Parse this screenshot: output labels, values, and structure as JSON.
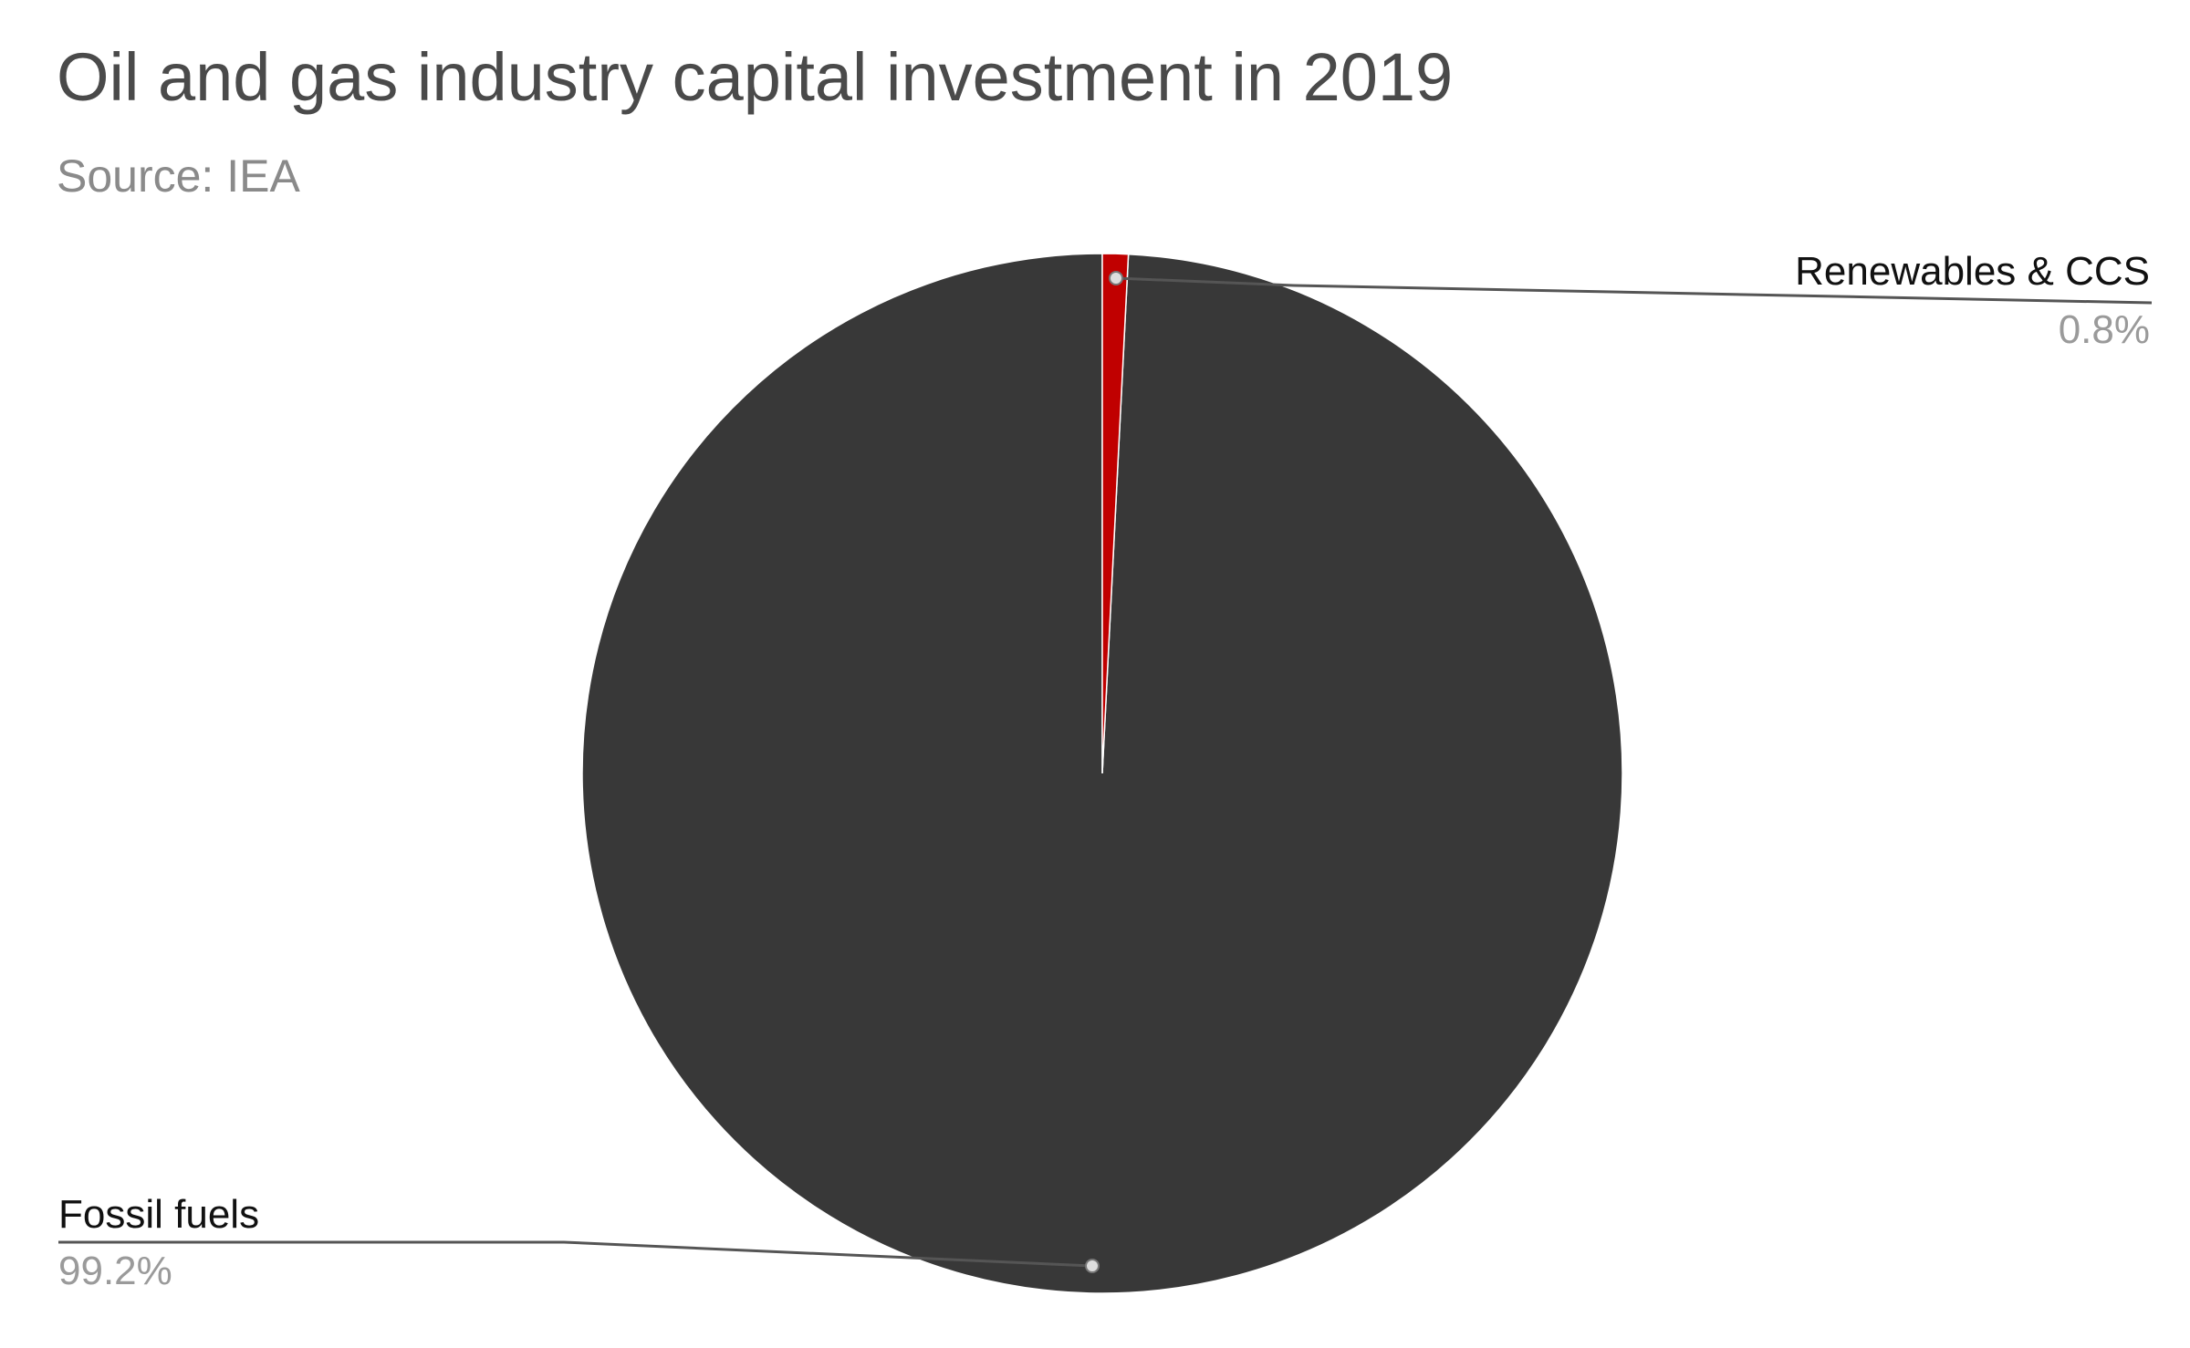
{
  "chart_data": {
    "type": "pie",
    "title": "Oil and gas industry capital investment in 2019",
    "subtitle": "Source: IEA",
    "slices": [
      {
        "name": "Renewables & CCS",
        "value": 0.8,
        "label": "0.8%",
        "color": "#c00000"
      },
      {
        "name": "Fossil fuels",
        "value": 99.2,
        "label": "99.2%",
        "color": "#383838"
      }
    ],
    "start_angle_deg": 0,
    "direction": "clockwise",
    "legend": "none",
    "label_placement": "callouts"
  }
}
